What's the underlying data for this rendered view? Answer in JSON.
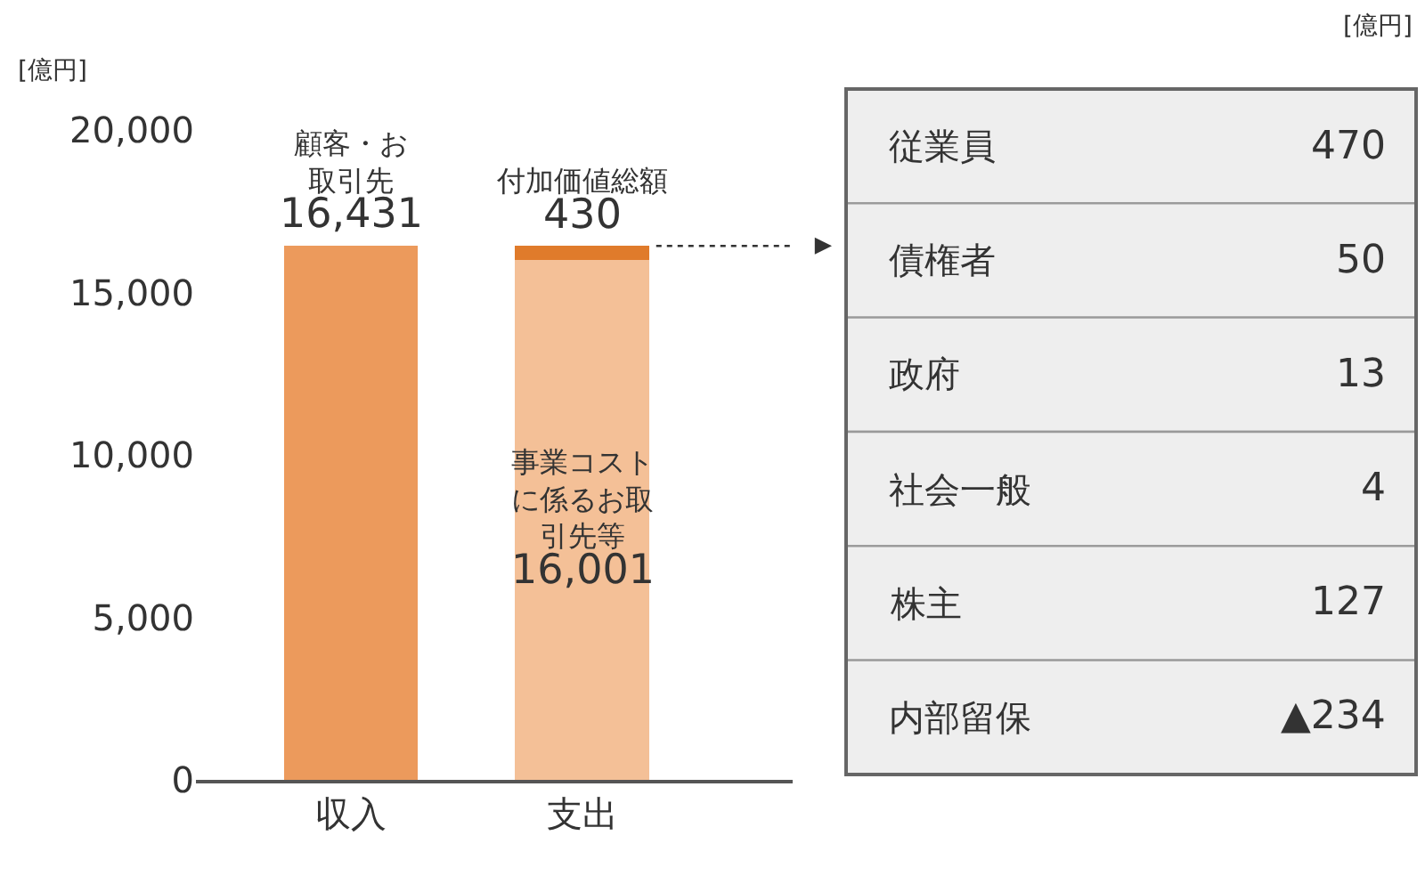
{
  "chart_data": [
    {
      "type": "bar",
      "stacked": true,
      "categories": [
        "収入",
        "支出"
      ],
      "ylabel": "[億円]",
      "ylim": [
        0,
        20000
      ],
      "yticks": [
        {
          "value": 0,
          "label": "0"
        },
        {
          "value": 5000,
          "label": "5,000"
        },
        {
          "value": 10000,
          "label": "10,000"
        },
        {
          "value": 15000,
          "label": "15,000"
        },
        {
          "value": 20000,
          "label": "20,000"
        }
      ],
      "grid": false,
      "legend": false,
      "series": [
        {
          "name": "顧客・お取引先",
          "color": "#ec9a5c",
          "values": [
            16431,
            null
          ],
          "value_labels": [
            "16,431",
            null
          ]
        },
        {
          "name": "事業コストに係るお取引先等",
          "color": "#f4c097",
          "values": [
            null,
            16001
          ],
          "value_labels": [
            null,
            "16,001"
          ]
        },
        {
          "name": "付加価値総額",
          "color": "#e07b2b",
          "values": [
            null,
            430
          ],
          "value_labels": [
            null,
            "430"
          ]
        }
      ]
    },
    {
      "type": "other",
      "categories": [
        "従業員",
        "債権者",
        "政府",
        "社会一般",
        "株主",
        "内部留保"
      ],
      "value_labels": [
        "470",
        "50",
        "13",
        "4",
        "127",
        "▲234"
      ],
      "annotations": [
        "[億円]"
      ]
    }
  ]
}
